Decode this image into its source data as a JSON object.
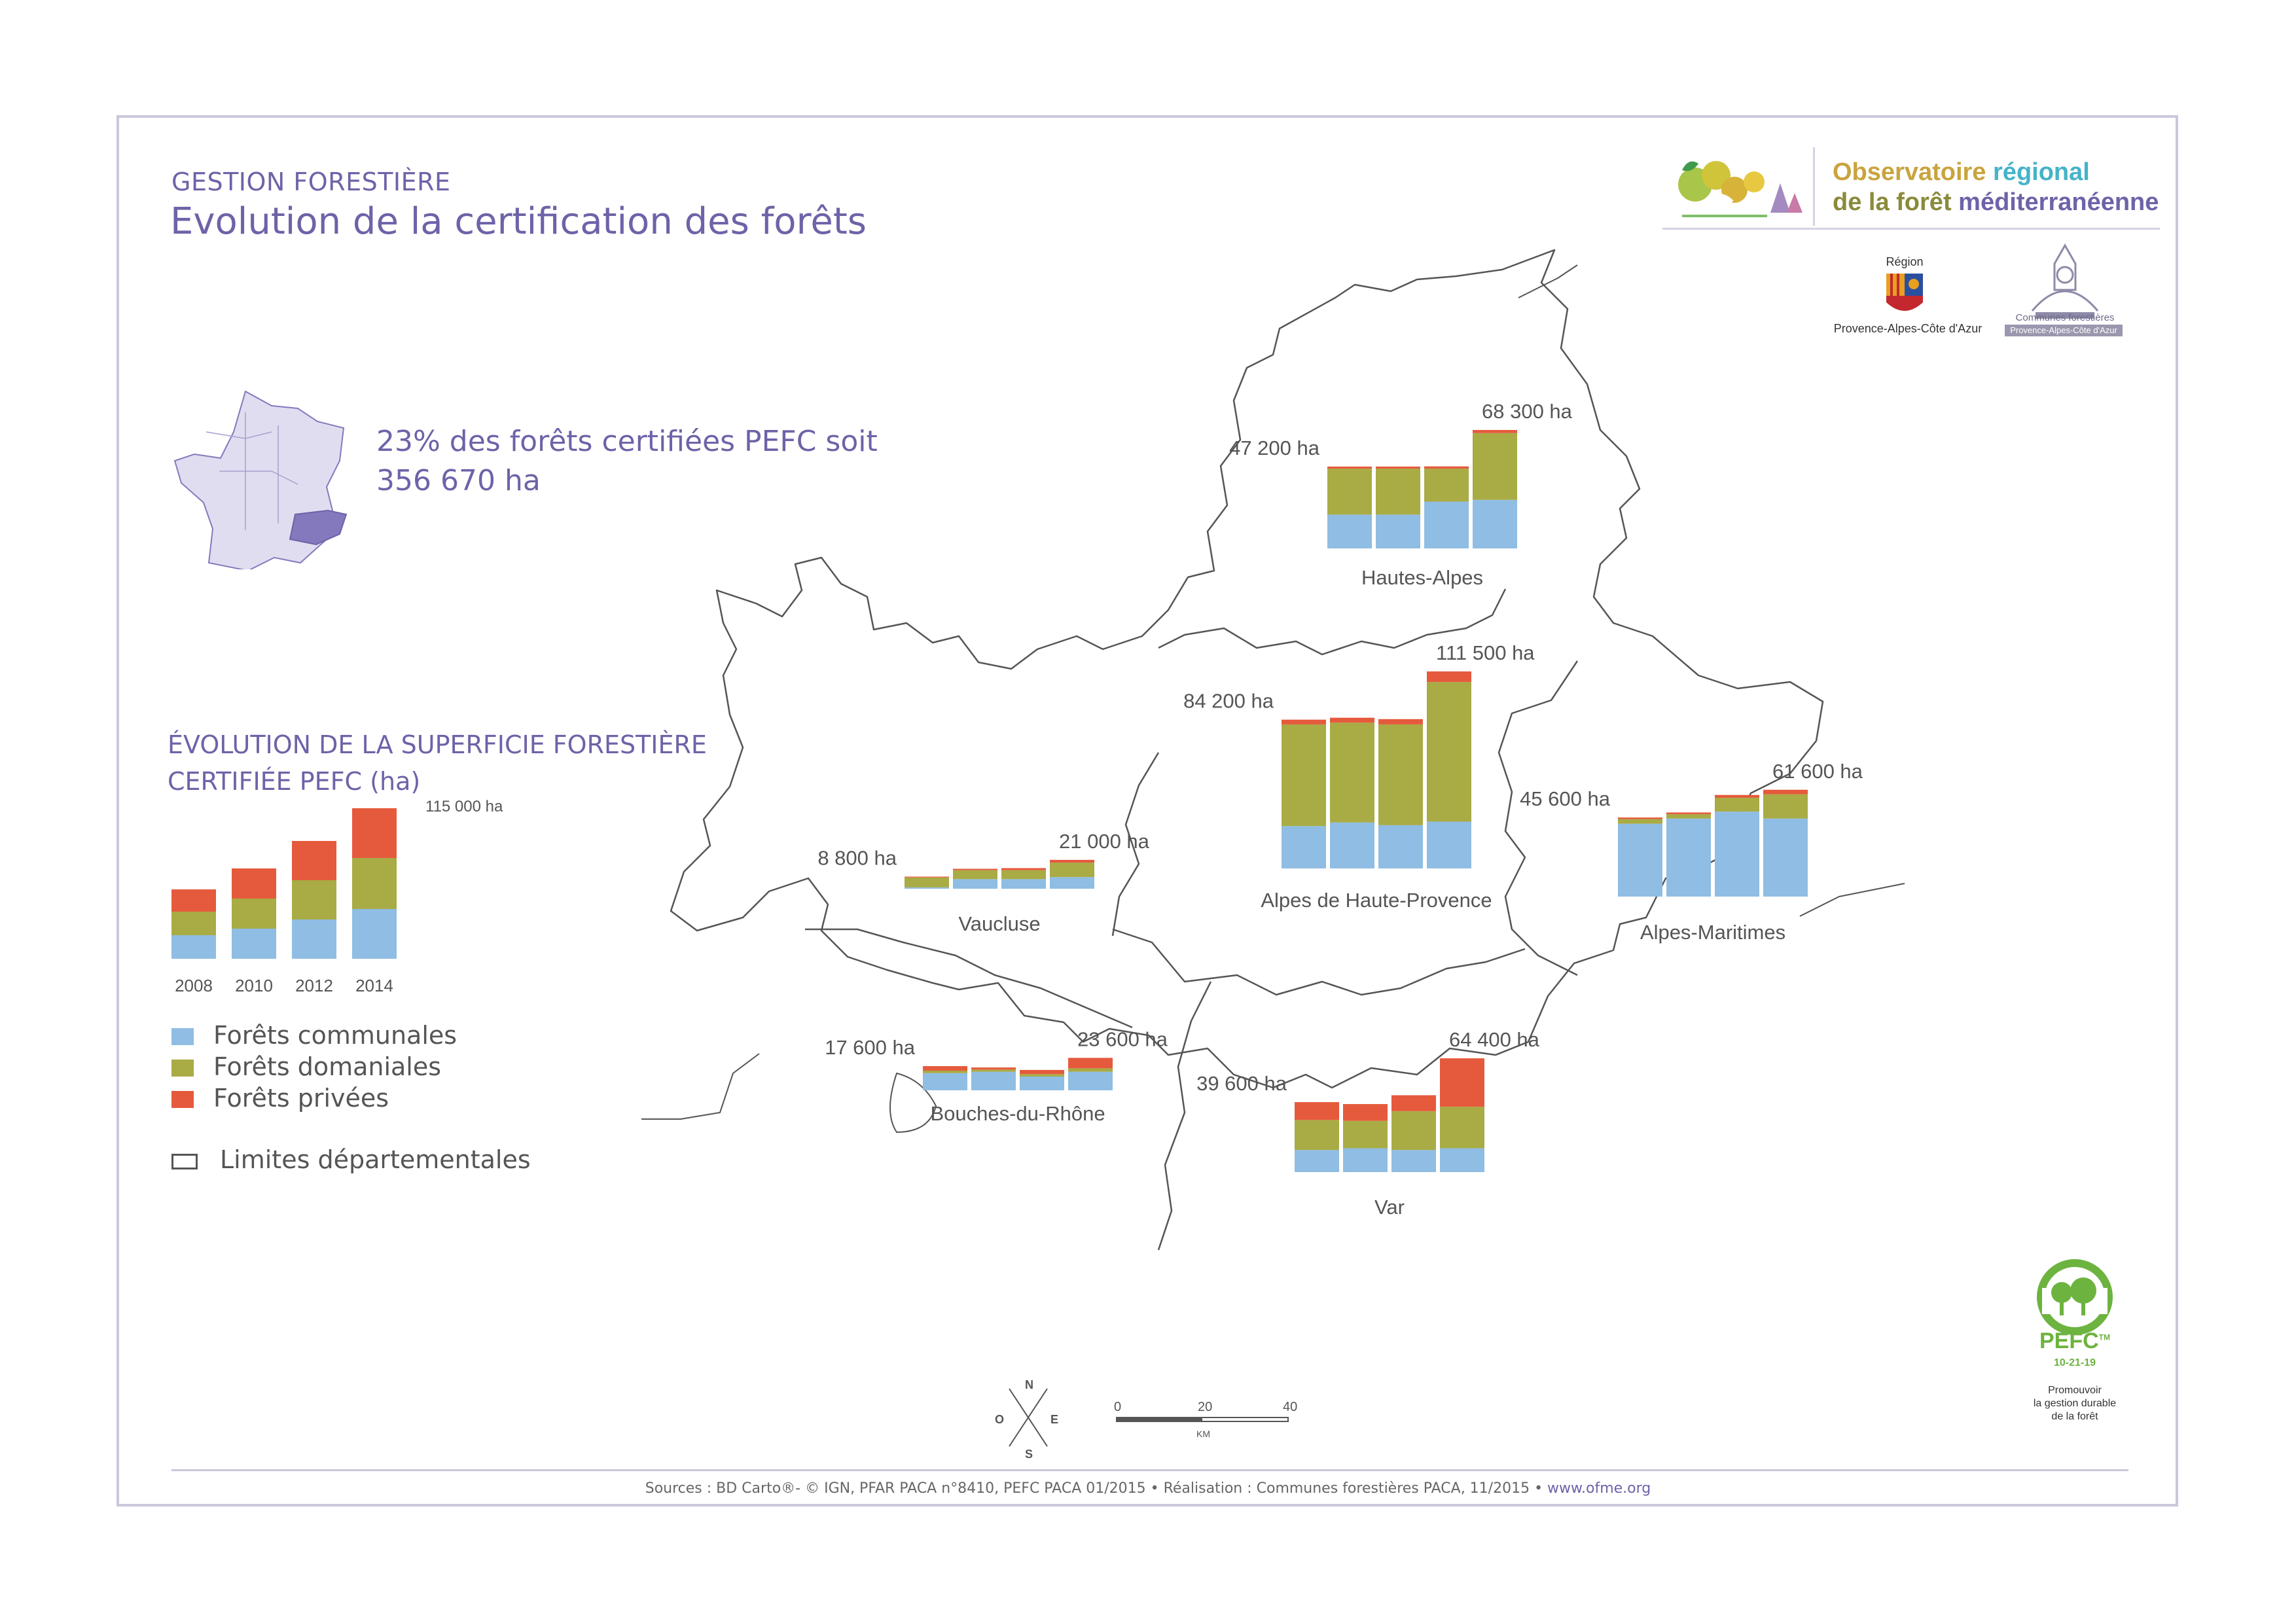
{
  "header": {
    "section": "GESTION FORESTIÈRE",
    "title": "Evolution de la certification des forêts"
  },
  "logos": {
    "ofme_line1_a": "Observatoire",
    "ofme_line1_b": "régional",
    "ofme_line2_a": "de la forêt",
    "ofme_line2_b": "méditerranéenne",
    "region_top": "Région",
    "region_bottom": "Provence-Alpes-Côte d'Azur",
    "communes_line1": "Communes forestières",
    "communes_line2": "Provence-Alpes-Côte d'Azur",
    "pefc_name": "PEFC",
    "pefc_tm": "TM",
    "pefc_code": "10-21-19",
    "pefc_slogan": [
      "Promouvoir",
      "la gestion durable",
      "de la forêt"
    ]
  },
  "headline": {
    "line1": "23% des forêts certifiées PEFC soit",
    "line2": "356 670 ha"
  },
  "colors": {
    "communales": "#8fbde3",
    "domaniales": "#a9ab45",
    "privees": "#e55a3c",
    "text_purple": "#6d63a8",
    "boundary": "#555555",
    "france_fill": "#e1ddf0",
    "paca_fill": "#8479bd"
  },
  "summary_chart": {
    "title_line1": "ÉVOLUTION DE LA SUPERFICIE FORESTIÈRE",
    "title_line2": "CERTIFIÉE PEFC (ha)",
    "max_label": "115 000 ha"
  },
  "chart_data": [
    {
      "type": "bar",
      "stacked": true,
      "categories": [
        "2008",
        "2010",
        "2012",
        "2014"
      ],
      "series": [
        {
          "name": "Forêts communales",
          "values": [
            18000,
            23000,
            30000,
            38000
          ]
        },
        {
          "name": "Forêts domaniales",
          "values": [
            18000,
            23000,
            30000,
            39000
          ]
        },
        {
          "name": "Forêts privées",
          "values": [
            17000,
            23000,
            30000,
            38000
          ]
        }
      ],
      "labels": {
        "2014": "115 000 ha"
      }
    },
    {
      "type": "bar",
      "stacked": true,
      "title": "Hautes-Alpes",
      "categories": [
        "2008",
        "2010",
        "2012",
        "2014"
      ],
      "series": [
        {
          "name": "Forêts communales",
          "values": [
            19500,
            19500,
            27000,
            28000
          ]
        },
        {
          "name": "Forêts domaniales",
          "values": [
            26500,
            26500,
            19000,
            38500
          ]
        },
        {
          "name": "Forêts privées",
          "values": [
            1200,
            1200,
            1300,
            1800
          ]
        }
      ],
      "start_label": "47 200 ha",
      "end_label": "68 300 ha"
    },
    {
      "type": "bar",
      "stacked": true,
      "title": "Alpes de Haute-Provence",
      "categories": [
        "2008",
        "2010",
        "2012",
        "2014"
      ],
      "series": [
        {
          "name": "Forêts communales",
          "values": [
            24000,
            26000,
            24500,
            26500
          ]
        },
        {
          "name": "Forêts domaniales",
          "values": [
            57500,
            56500,
            57000,
            79000
          ]
        },
        {
          "name": "Forêts privées",
          "values": [
            2700,
            2800,
            3000,
            6000
          ]
        }
      ],
      "start_label": "84 200 ha",
      "end_label": "111 500 ha"
    },
    {
      "type": "bar",
      "stacked": true,
      "title": "Alpes-Maritimes",
      "categories": [
        "2008",
        "2010",
        "2012",
        "2014"
      ],
      "series": [
        {
          "name": "Forêts communales",
          "values": [
            42000,
            45000,
            49000,
            45000
          ]
        },
        {
          "name": "Forêts domaniales",
          "values": [
            2700,
            2500,
            8000,
            14000
          ]
        },
        {
          "name": "Forêts privées",
          "values": [
            900,
            1000,
            1600,
            2600
          ]
        }
      ],
      "start_label": "45 600 ha",
      "end_label": "61 600 ha"
    },
    {
      "type": "bar",
      "stacked": true,
      "title": "Vaucluse",
      "categories": [
        "2008",
        "2010",
        "2012",
        "2014"
      ],
      "series": [
        {
          "name": "Forêts communales",
          "values": [
            1000,
            7000,
            7000,
            8500
          ]
        },
        {
          "name": "Forêts domaniales",
          "values": [
            7200,
            6500,
            6500,
            10500
          ]
        },
        {
          "name": "Forêts privées",
          "values": [
            600,
            1000,
            1500,
            2000
          ]
        }
      ],
      "start_label": "8 800 ha",
      "end_label": "21 000 ha"
    },
    {
      "type": "bar",
      "stacked": true,
      "title": "Bouches-du-Rhône",
      "categories": [
        "2008",
        "2010",
        "2012",
        "2014"
      ],
      "series": [
        {
          "name": "Forêts communales",
          "values": [
            12500,
            13500,
            10000,
            13500
          ]
        },
        {
          "name": "Forêts domaniales",
          "values": [
            1800,
            1600,
            1800,
            2500
          ]
        },
        {
          "name": "Forêts privées",
          "values": [
            3300,
            1500,
            3000,
            7600
          ]
        }
      ],
      "start_label": "17 600 ha",
      "end_label": "23 600 ha"
    },
    {
      "type": "bar",
      "stacked": true,
      "title": "Var",
      "categories": [
        "2008",
        "2010",
        "2012",
        "2014"
      ],
      "series": [
        {
          "name": "Forêts communales",
          "values": [
            12500,
            13500,
            12500,
            13500
          ]
        },
        {
          "name": "Forêts domaniales",
          "values": [
            17000,
            15500,
            22000,
            23500
          ]
        },
        {
          "name": "Forêts privées",
          "values": [
            10100,
            9500,
            9000,
            27400
          ]
        }
      ],
      "start_label": "39 600 ha",
      "end_label": "64 400 ha"
    }
  ],
  "legend": {
    "communales": "Forêts communales",
    "domaniales": "Forêts domaniales",
    "privees": "Forêts privées",
    "limits": "Limites départementales"
  },
  "compass": {
    "n": "N",
    "o": "O",
    "e": "E",
    "s": "S"
  },
  "scale": {
    "t0": "0",
    "t1": "20",
    "t2": "40",
    "unit": "KM"
  },
  "sources": {
    "text": "Sources : BD Carto®- © IGN, PFAR PACA n°8410,  PEFC PACA 01/2015 • Réalisation : Communes forestières PACA, 11/2015 • ",
    "link": "www.ofme.org"
  }
}
